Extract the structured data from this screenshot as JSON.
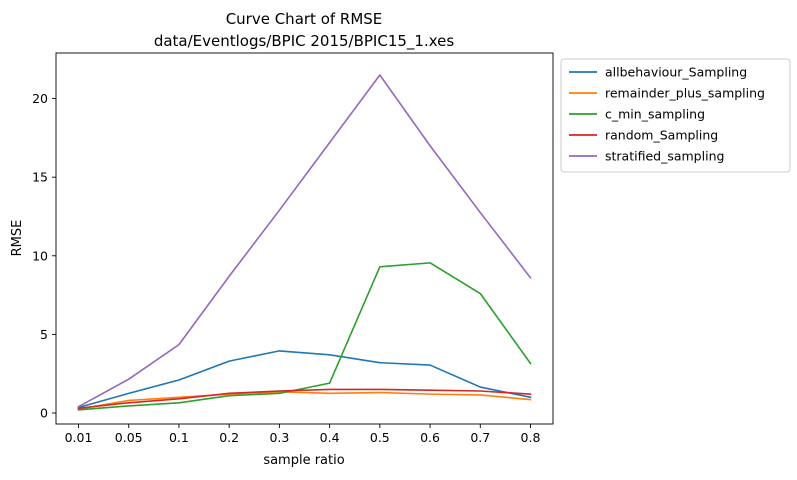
{
  "chart_data": {
    "type": "line",
    "title": "Curve Chart of RMSE",
    "subtitle": "data/Eventlogs/BPIC 2015/BPIC15_1.xes",
    "xlabel": "sample ratio",
    "ylabel": "RMSE",
    "categories": [
      "0.01",
      "0.05",
      "0.1",
      "0.2",
      "0.3",
      "0.4",
      "0.5",
      "0.6",
      "0.7",
      "0.8"
    ],
    "ylim": [
      -0.7,
      22.9
    ],
    "yticks": [
      0,
      5,
      10,
      15,
      20
    ],
    "grid": false,
    "legend_position": "outside-right",
    "series": [
      {
        "name": "allbehaviour_Sampling",
        "color": "#1f77b4",
        "values": [
          0.35,
          1.25,
          2.1,
          3.3,
          3.95,
          3.7,
          3.2,
          3.05,
          1.65,
          1.0
        ]
      },
      {
        "name": "remainder_plus_sampling",
        "color": "#ff7f0e",
        "values": [
          0.25,
          0.8,
          1.0,
          1.2,
          1.35,
          1.25,
          1.3,
          1.2,
          1.15,
          0.85
        ]
      },
      {
        "name": "c_min_sampling",
        "color": "#2ca02c",
        "values": [
          0.2,
          0.45,
          0.65,
          1.1,
          1.25,
          1.9,
          9.3,
          9.55,
          7.6,
          3.15
        ]
      },
      {
        "name": "random_Sampling",
        "color": "#d62728",
        "values": [
          0.3,
          0.65,
          0.9,
          1.25,
          1.4,
          1.5,
          1.5,
          1.45,
          1.4,
          1.2
        ]
      },
      {
        "name": "stratified_sampling",
        "color": "#9467bd",
        "values": [
          0.4,
          2.15,
          4.35,
          8.7,
          12.9,
          17.2,
          21.5,
          17.0,
          12.75,
          8.6
        ]
      }
    ]
  }
}
